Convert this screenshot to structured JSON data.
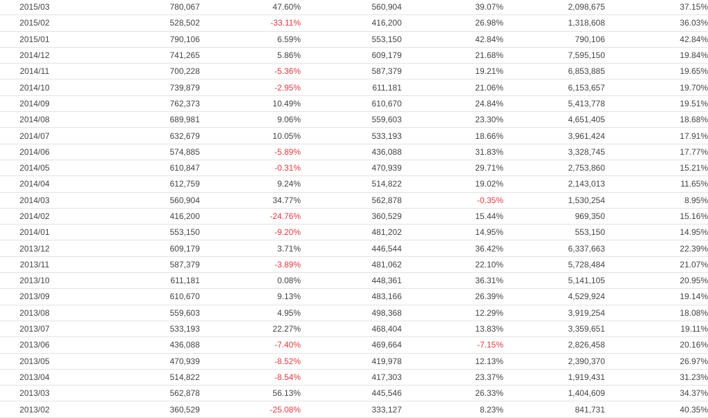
{
  "colors": {
    "text": "#444444",
    "negative": "#e8383d",
    "row_border": "#e2e2e2"
  },
  "rows": [
    [
      "2015/03",
      "780,067",
      "47.60%",
      "560,904",
      "39.07%",
      "2,098,675",
      "37.15%"
    ],
    [
      "2015/02",
      "528,502",
      "-33.11%",
      "416,200",
      "26.98%",
      "1,318,608",
      "36.03%"
    ],
    [
      "2015/01",
      "790,106",
      "6.59%",
      "553,150",
      "42.84%",
      "790,106",
      "42.84%"
    ],
    [
      "2014/12",
      "741,265",
      "5.86%",
      "609,179",
      "21.68%",
      "7,595,150",
      "19.84%"
    ],
    [
      "2014/11",
      "700,228",
      "-5.36%",
      "587,379",
      "19.21%",
      "6,853,885",
      "19.65%"
    ],
    [
      "2014/10",
      "739,879",
      "-2.95%",
      "611,181",
      "21.06%",
      "6,153,657",
      "19.70%"
    ],
    [
      "2014/09",
      "762,373",
      "10.49%",
      "610,670",
      "24.84%",
      "5,413,778",
      "19.51%"
    ],
    [
      "2014/08",
      "689,981",
      "9.06%",
      "559,603",
      "23.30%",
      "4,651,405",
      "18.68%"
    ],
    [
      "2014/07",
      "632,679",
      "10.05%",
      "533,193",
      "18.66%",
      "3,961,424",
      "17.91%"
    ],
    [
      "2014/06",
      "574,885",
      "-5.89%",
      "436,088",
      "31.83%",
      "3,328,745",
      "17.77%"
    ],
    [
      "2014/05",
      "610,847",
      "-0.31%",
      "470,939",
      "29.71%",
      "2,753,860",
      "15.21%"
    ],
    [
      "2014/04",
      "612,759",
      "9.24%",
      "514,822",
      "19.02%",
      "2,143,013",
      "11.65%"
    ],
    [
      "2014/03",
      "560,904",
      "34.77%",
      "562,878",
      "-0.35%",
      "1,530,254",
      "8.95%"
    ],
    [
      "2014/02",
      "416,200",
      "-24.76%",
      "360,529",
      "15.44%",
      "969,350",
      "15.16%"
    ],
    [
      "2014/01",
      "553,150",
      "-9.20%",
      "481,202",
      "14.95%",
      "553,150",
      "14.95%"
    ],
    [
      "2013/12",
      "609,179",
      "3.71%",
      "446,544",
      "36.42%",
      "6,337,663",
      "22.39%"
    ],
    [
      "2013/11",
      "587,379",
      "-3.89%",
      "481,062",
      "22.10%",
      "5,728,484",
      "21.07%"
    ],
    [
      "2013/10",
      "611,181",
      "0.08%",
      "448,361",
      "36.31%",
      "5,141,105",
      "20.95%"
    ],
    [
      "2013/09",
      "610,670",
      "9.13%",
      "483,166",
      "26.39%",
      "4,529,924",
      "19.14%"
    ],
    [
      "2013/08",
      "559,603",
      "4.95%",
      "498,368",
      "12.29%",
      "3,919,254",
      "18.08%"
    ],
    [
      "2013/07",
      "533,193",
      "22.27%",
      "468,404",
      "13.83%",
      "3,359,651",
      "19.11%"
    ],
    [
      "2013/06",
      "436,088",
      "-7.40%",
      "469,664",
      "-7.15%",
      "2,826,458",
      "20.16%"
    ],
    [
      "2013/05",
      "470,939",
      "-8.52%",
      "419,978",
      "12.13%",
      "2,390,370",
      "26.97%"
    ],
    [
      "2013/04",
      "514,822",
      "-8.54%",
      "417,303",
      "23.37%",
      "1,919,431",
      "31.23%"
    ],
    [
      "2013/03",
      "562,878",
      "56.13%",
      "445,546",
      "26.33%",
      "1,404,609",
      "34.37%"
    ],
    [
      "2013/02",
      "360,529",
      "-25.08%",
      "333,127",
      "8.23%",
      "841,731",
      "40.35%"
    ]
  ]
}
